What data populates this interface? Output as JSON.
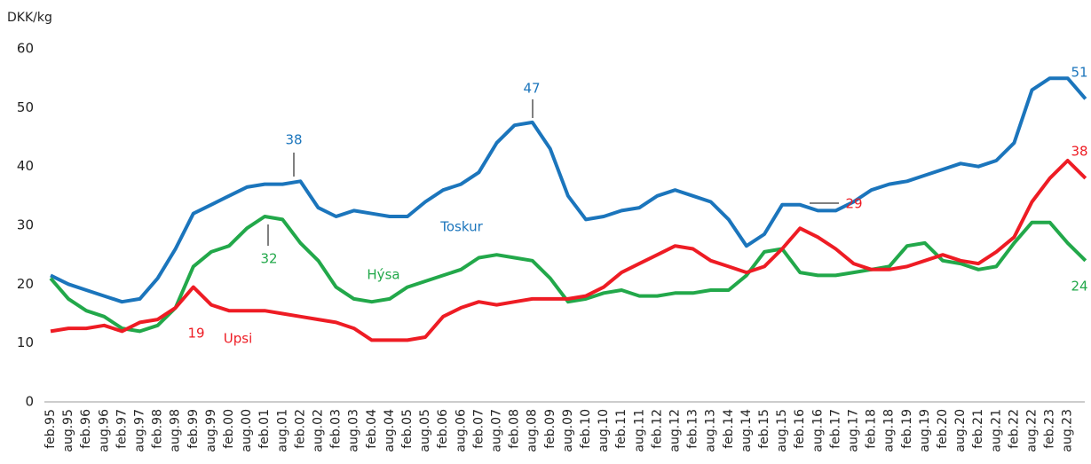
{
  "chart_data": {
    "type": "line",
    "y_label": "DKK/kg",
    "categories": [
      "feb.95",
      "aug.95",
      "feb.96",
      "aug.96",
      "feb.97",
      "aug.97",
      "feb.98",
      "aug.98",
      "feb.99",
      "aug.99",
      "feb.00",
      "aug.00",
      "feb.01",
      "aug.01",
      "feb.02",
      "aug.02",
      "feb.03",
      "aug.03",
      "feb.04",
      "aug.04",
      "feb.05",
      "aug.05",
      "feb.06",
      "aug.06",
      "feb.07",
      "aug.07",
      "feb.08",
      "aug.08",
      "feb.09",
      "aug.09",
      "feb.10",
      "aug.10",
      "feb.11",
      "aug.11",
      "feb.12",
      "aug.12",
      "feb.13",
      "aug.13",
      "feb.14",
      "aug.14",
      "feb.15",
      "aug.15",
      "feb.16",
      "aug.16",
      "feb.17",
      "aug.17",
      "feb.18",
      "aug.18",
      "feb.19",
      "aug.19",
      "feb.20",
      "aug.20",
      "feb.21",
      "aug.21",
      "feb.22",
      "aug.22",
      "feb.23",
      "aug.23",
      null
    ],
    "series": [
      {
        "name": "Toskur",
        "color": "#1b75bc",
        "values": [
          21.5,
          20,
          19,
          18,
          17,
          17.5,
          21,
          26,
          32,
          33.5,
          35,
          36.5,
          37,
          37,
          37.5,
          33,
          31.5,
          32.5,
          32,
          31.5,
          31.5,
          34,
          36,
          37,
          39,
          44,
          47,
          47.5,
          43,
          35,
          31,
          31.5,
          32.5,
          33,
          35,
          36,
          35,
          34,
          31,
          26.5,
          28.5,
          33.5,
          33.5,
          32.5,
          32.5,
          34,
          36,
          37,
          37.5,
          38.5,
          39.5,
          40.5,
          40,
          41,
          44,
          53,
          55,
          55,
          51.5
        ]
      },
      {
        "name": "Hýsa",
        "color": "#22a84a",
        "values": [
          21,
          17.5,
          15.5,
          14.5,
          12.5,
          12,
          13,
          16,
          23,
          25.5,
          26.5,
          29.5,
          31.5,
          31,
          27,
          24,
          19.5,
          17.5,
          17,
          17.5,
          19.5,
          20.5,
          21.5,
          22.5,
          24.5,
          25,
          24.5,
          24,
          21,
          17,
          17.5,
          18.5,
          19,
          18,
          18,
          18.5,
          18.5,
          19,
          19,
          21.5,
          25.5,
          26,
          22,
          21.5,
          21.5,
          22,
          22.5,
          23,
          26.5,
          27,
          24,
          23.5,
          22.5,
          23,
          27,
          30.5,
          30.5,
          27,
          24
        ]
      },
      {
        "name": "Upsi",
        "color": "#ee1c24",
        "values": [
          12,
          12.5,
          12.5,
          13,
          12,
          13.5,
          14,
          16,
          19.5,
          16.5,
          15.5,
          15.5,
          15.5,
          15,
          14.5,
          14,
          13.5,
          12.5,
          10.5,
          10.5,
          10.5,
          11,
          14.5,
          16,
          17,
          16.5,
          17,
          17.5,
          17.5,
          17.5,
          18,
          19.5,
          22,
          23.5,
          25,
          26.5,
          26,
          24,
          23,
          22,
          23,
          26,
          29.5,
          28,
          26,
          23.5,
          22.5,
          22.5,
          23,
          24,
          25,
          24,
          23.5,
          25.5,
          28,
          34,
          38,
          41,
          38
        ]
      }
    ],
    "annotations": [
      "38",
      "47",
      "51",
      "32",
      "19",
      "29",
      "38",
      "24"
    ],
    "ylim": [
      0,
      60
    ],
    "yticks": [
      0,
      10,
      20,
      30,
      40,
      50,
      60
    ],
    "grid": false
  }
}
